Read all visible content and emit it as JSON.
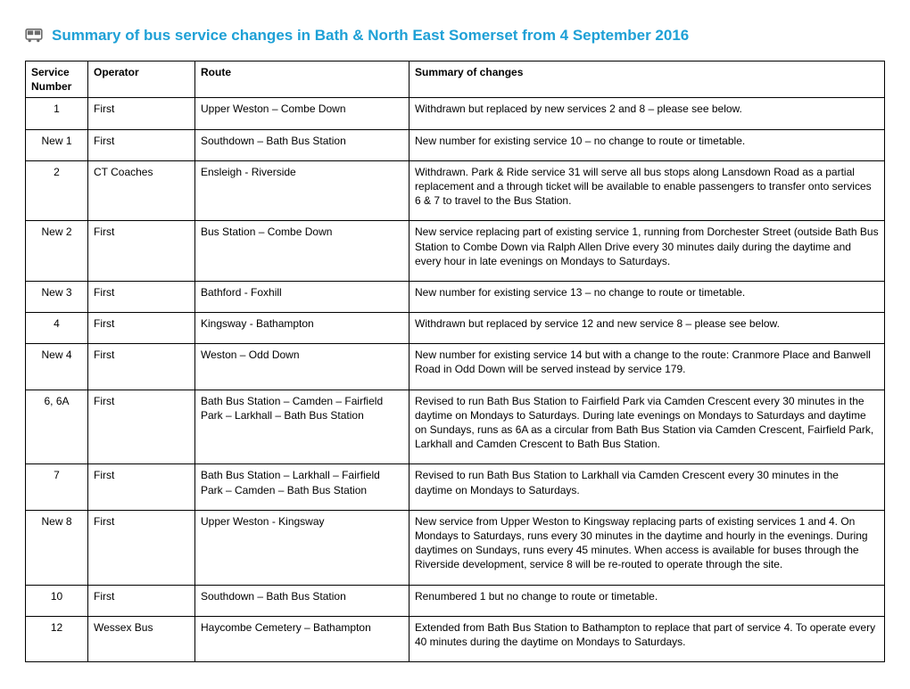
{
  "title": {
    "text": "Summary of bus service changes in Bath & North East Somerset from 4 September 2016",
    "color": "#1ea0d6"
  },
  "icon_color": "#6b6b6b",
  "table": {
    "columns": [
      "Service Number",
      "Operator",
      "Route",
      "Summary of changes"
    ],
    "rows": [
      {
        "service": "1",
        "operator": "First",
        "route": "Upper Weston – Combe Down",
        "summary": "Withdrawn but replaced by new services 2 and 8 – please see below."
      },
      {
        "service": "New 1",
        "operator": "First",
        "route": "Southdown – Bath Bus Station",
        "summary": "New number for existing service 10 – no change to route or timetable."
      },
      {
        "service": "2",
        "operator": "CT Coaches",
        "route": "Ensleigh - Riverside",
        "summary": "Withdrawn. Park & Ride service 31 will serve all bus stops along Lansdown Road as a partial replacement and a through ticket will be available to enable passengers to transfer onto services 6 & 7 to travel to the Bus Station."
      },
      {
        "service": "New 2",
        "operator": "First",
        "route": "Bus Station – Combe Down",
        "summary": "New service replacing part of existing service 1, running from Dorchester Street (outside Bath Bus Station to Combe Down via Ralph Allen Drive every 30 minutes daily during the daytime and every hour in late evenings on Mondays to Saturdays."
      },
      {
        "service": "New 3",
        "operator": "First",
        "route": "Bathford - Foxhill",
        "summary": "New number for existing service 13 – no change to route or timetable."
      },
      {
        "service": "4",
        "operator": "First",
        "route": "Kingsway - Bathampton",
        "summary": "Withdrawn but replaced by service 12 and new service 8 – please see below."
      },
      {
        "service": "New 4",
        "operator": "First",
        "route": "Weston – Odd Down",
        "summary": "New number for existing service 14 but with a change to the route: Cranmore Place and Banwell Road in Odd Down will be served instead by service 179."
      },
      {
        "service": "6, 6A",
        "operator": "First",
        "route": "Bath Bus Station – Camden – Fairfield Park – Larkhall – Bath Bus Station",
        "summary": "Revised to run Bath Bus Station to Fairfield Park via Camden Crescent every 30 minutes in the daytime on Mondays to Saturdays. During late evenings on Mondays to Saturdays and daytime on Sundays, runs as 6A as a circular from Bath Bus Station via Camden Crescent, Fairfield Park, Larkhall and Camden Crescent to Bath Bus Station."
      },
      {
        "service": "7",
        "operator": "First",
        "route": "Bath Bus Station – Larkhall – Fairfield Park – Camden – Bath Bus Station",
        "summary": "Revised to run Bath Bus Station to Larkhall via Camden Crescent every 30 minutes in the daytime on Mondays to Saturdays."
      },
      {
        "service": "New 8",
        "operator": "First",
        "route": "Upper Weston - Kingsway",
        "summary": "New service from Upper Weston to Kingsway replacing parts of existing services 1 and 4. On Mondays to Saturdays, runs every 30 minutes in the daytime and hourly in the evenings. During daytimes on Sundays, runs every 45 minutes. When access is available for buses through the Riverside development, service 8 will be re-routed to operate through the site."
      },
      {
        "service": "10",
        "operator": "First",
        "route": "Southdown – Bath Bus Station",
        "summary": "Renumbered 1 but no change to route or timetable."
      },
      {
        "service": "12",
        "operator": "Wessex Bus",
        "route": "Haycombe Cemetery – Bathampton",
        "summary": "Extended from Bath Bus Station to Bathampton to replace that part of service 4. To operate every 40 minutes during the daytime on Mondays to Saturdays."
      }
    ]
  }
}
